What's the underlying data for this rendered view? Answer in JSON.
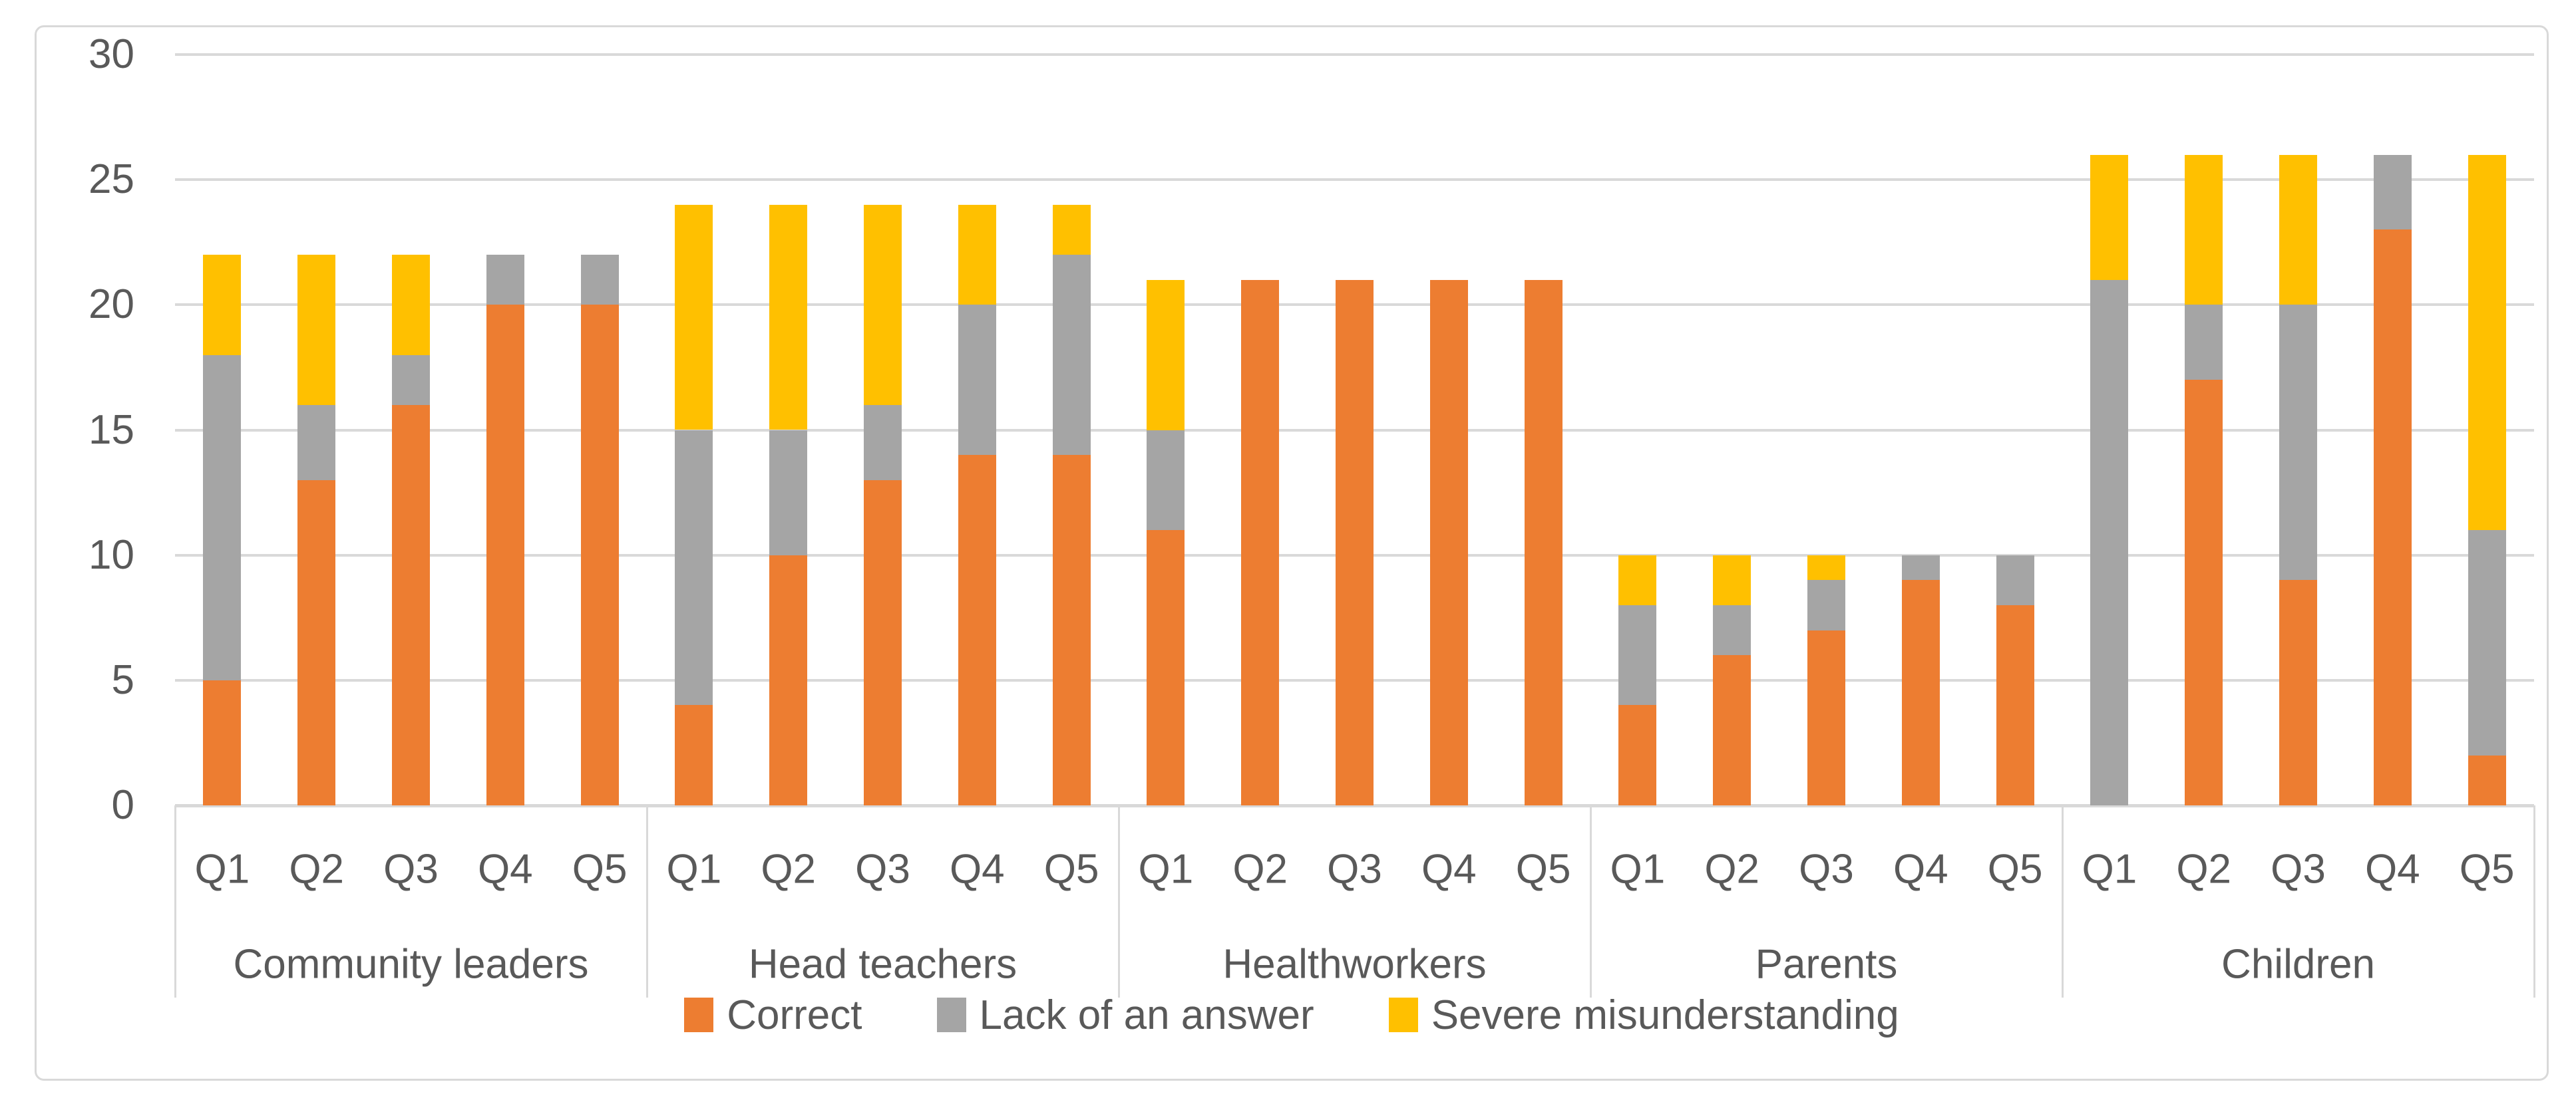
{
  "chart_data": {
    "type": "bar",
    "stacked": true,
    "title": "",
    "groups": [
      "Community leaders",
      "Head teachers",
      "Healthworkers",
      "Parents",
      "Children"
    ],
    "categories": [
      "Q1",
      "Q2",
      "Q3",
      "Q4",
      "Q5"
    ],
    "series": [
      {
        "name": "Correct",
        "color": "#ED7D31",
        "values": [
          [
            5,
            13,
            16,
            20,
            20
          ],
          [
            4,
            10,
            13,
            14,
            14
          ],
          [
            11,
            21,
            21,
            21,
            21
          ],
          [
            4,
            6,
            7,
            9,
            8
          ],
          [
            0,
            17,
            9,
            23,
            2
          ]
        ]
      },
      {
        "name": "Lack of an answer",
        "color": "#A5A5A5",
        "values": [
          [
            13,
            3,
            2,
            2,
            2
          ],
          [
            11,
            5,
            3,
            6,
            8
          ],
          [
            4,
            0,
            0,
            0,
            0
          ],
          [
            4,
            2,
            2,
            1,
            2
          ],
          [
            21,
            3,
            11,
            3,
            9
          ]
        ]
      },
      {
        "name": "Severe misunderstanding",
        "color": "#FFC000",
        "values": [
          [
            4,
            6,
            4,
            0,
            0
          ],
          [
            9,
            9,
            8,
            4,
            2
          ],
          [
            6,
            0,
            0,
            0,
            0
          ],
          [
            2,
            2,
            1,
            0,
            0
          ],
          [
            5,
            6,
            6,
            0,
            15
          ]
        ]
      }
    ],
    "ylim": [
      0,
      30
    ],
    "yticks": [
      0,
      5,
      10,
      15,
      20,
      25,
      30
    ],
    "grid": true,
    "legend_position": "bottom",
    "colors": {
      "text": "#595959",
      "gridline": "#D9D9D9",
      "axis_line": "#D9D9D9",
      "chart_border": "#D9D9D9",
      "background": "#FFFFFF"
    }
  }
}
